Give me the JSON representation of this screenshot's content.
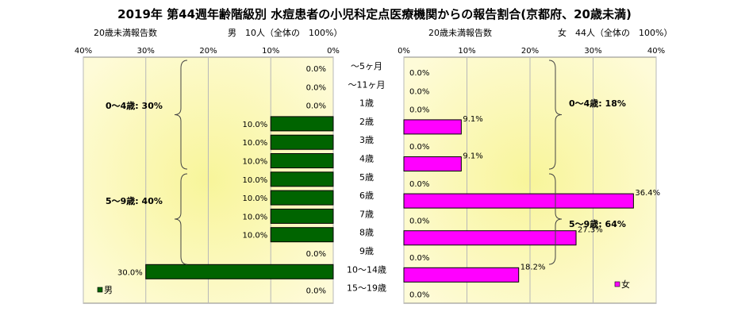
{
  "title": "2019年 第44週年齢階級別 水痘患者の小児科定点医療機関からの報告割合(京都府、20歳未満)",
  "age_groups": [
    "～5ヶ月",
    "～11ヶ月",
    "1歳",
    "2歳",
    "3歳",
    "4歳",
    "5歳",
    "6歳",
    "7歳",
    "8歳",
    "9歳",
    "10～14歳",
    "15～19歳"
  ],
  "colors": {
    "male": "#006400",
    "female": "#ff00ff",
    "plot_bg_edge": "#fefbd8",
    "plot_bg_center": "#f8f59a"
  },
  "chart_data": [
    {
      "type": "bar",
      "orientation": "horizontal",
      "direction": "right-to-left",
      "header_left": "20歳未満報告数",
      "header_right": "男　10人（全体の　100%）",
      "xlim": [
        0,
        40
      ],
      "ticks": [
        "40%",
        "30%",
        "20%",
        "10%",
        "0%"
      ],
      "categories": [
        "～5ヶ月",
        "～11ヶ月",
        "1歳",
        "2歳",
        "3歳",
        "4歳",
        "5歳",
        "6歳",
        "7歳",
        "8歳",
        "9歳",
        "10～14歳",
        "15～19歳"
      ],
      "series": [
        {
          "name": "男",
          "values": [
            0.0,
            0.0,
            0.0,
            10.0,
            10.0,
            10.0,
            10.0,
            10.0,
            10.0,
            10.0,
            0.0,
            30.0,
            0.0
          ]
        }
      ],
      "value_labels": [
        "0.0%",
        "0.0%",
        "0.0%",
        "10.0%",
        "10.0%",
        "10.0%",
        "10.0%",
        "10.0%",
        "10.0%",
        "10.0%",
        "0.0%",
        "30.0%",
        "0.0%"
      ],
      "annotations": [
        "0～4歳: 30%",
        "5～9歳: 40%"
      ],
      "legend": "bottom-left"
    },
    {
      "type": "bar",
      "orientation": "horizontal",
      "direction": "left-to-right",
      "header_left": "20歳未満報告数",
      "header_right": "女　44人（全体の　100%）",
      "xlim": [
        0,
        40
      ],
      "ticks": [
        "0%",
        "10%",
        "20%",
        "30%",
        "40%"
      ],
      "categories": [
        "～5ヶ月",
        "～11ヶ月",
        "1歳",
        "2歳",
        "3歳",
        "4歳",
        "5歳",
        "6歳",
        "7歳",
        "8歳",
        "9歳",
        "10～14歳",
        "15～19歳"
      ],
      "series": [
        {
          "name": "女",
          "values": [
            0.0,
            0.0,
            0.0,
            9.1,
            0.0,
            9.1,
            0.0,
            36.4,
            0.0,
            27.3,
            0.0,
            18.2,
            0.0
          ]
        }
      ],
      "value_labels": [
        "0.0%",
        "0.0%",
        "0.0%",
        "9.1%",
        "0.0%",
        "9.1%",
        "0.0%",
        "36.4%",
        "0.0%",
        "27.3%",
        "0.0%",
        "18.2%",
        "0.0%"
      ],
      "annotations": [
        "0～4歳: 18%",
        "5～9歳: 64%"
      ],
      "legend": "bottom-right"
    }
  ]
}
